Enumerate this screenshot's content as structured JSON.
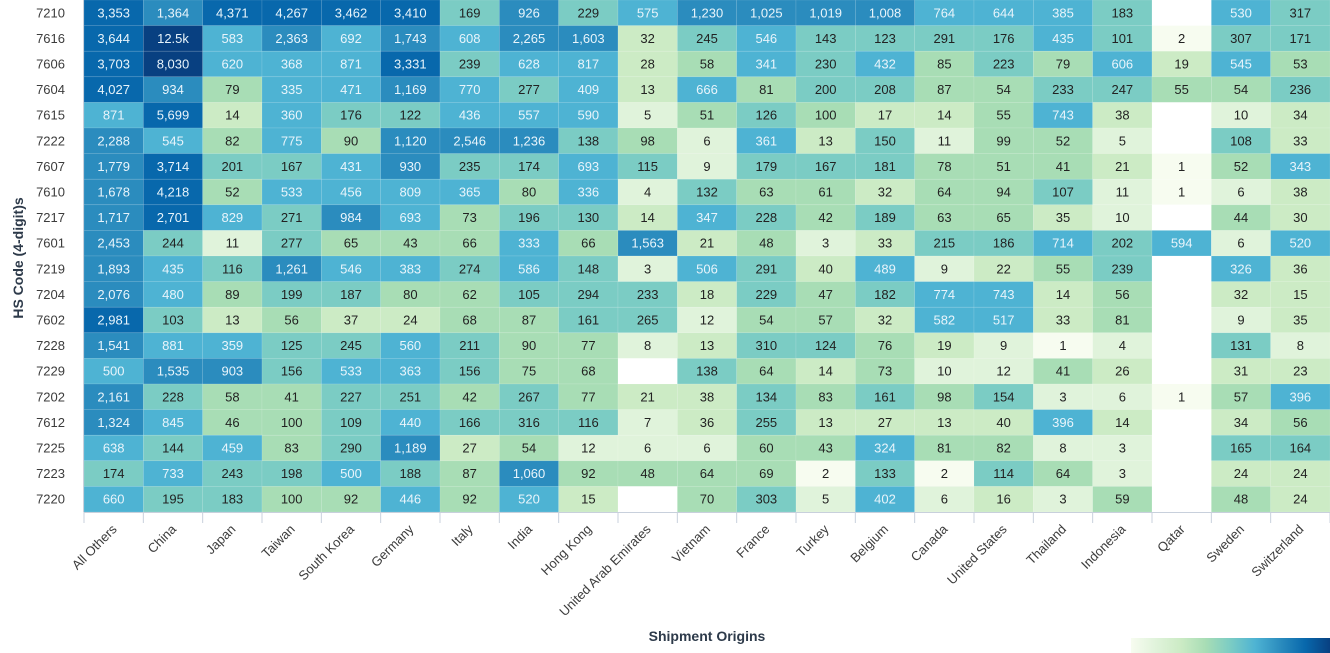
{
  "chart_data": {
    "type": "heatmap",
    "title": "",
    "xlabel": "Shipment Origins",
    "ylabel": "HS Code (4-digit)s",
    "color_scale": "log",
    "colormap": [
      "#f7fcf0",
      "#e0f3db",
      "#ccebc5",
      "#a8ddb5",
      "#7bccc4",
      "#4eb3d3",
      "#2b8cbe",
      "#0868ac",
      "#084081"
    ],
    "categories_x": [
      "All Others",
      "China",
      "Japan",
      "Taiwan",
      "South Korea",
      "Germany",
      "Italy",
      "India",
      "Hong Kong",
      "United Arab Emirates",
      "Vietnam",
      "France",
      "Turkey",
      "Belgium",
      "Canada",
      "United States",
      "Thailand",
      "Indonesia",
      "Qatar",
      "Sweden",
      "Switzerland"
    ],
    "categories_y": [
      "7210",
      "7616",
      "7606",
      "7604",
      "7615",
      "7222",
      "7607",
      "7610",
      "7217",
      "7601",
      "7219",
      "7204",
      "7602",
      "7228",
      "7229",
      "7202",
      "7612",
      "7225",
      "7223",
      "7220"
    ],
    "values": [
      [
        3353,
        1364,
        4371,
        4267,
        3462,
        3410,
        169,
        926,
        229,
        575,
        1230,
        1025,
        1019,
        1008,
        764,
        644,
        385,
        183,
        null,
        530,
        317
      ],
      [
        3644,
        12500,
        583,
        2363,
        692,
        1743,
        608,
        2265,
        1603,
        32,
        245,
        546,
        143,
        123,
        291,
        176,
        435,
        101,
        2,
        307,
        171
      ],
      [
        3703,
        8030,
        620,
        368,
        871,
        3331,
        239,
        628,
        817,
        28,
        58,
        341,
        230,
        432,
        85,
        223,
        79,
        606,
        19,
        545,
        53
      ],
      [
        4027,
        934,
        79,
        335,
        471,
        1169,
        770,
        277,
        409,
        13,
        666,
        81,
        200,
        208,
        87,
        54,
        233,
        247,
        55,
        54,
        236
      ],
      [
        871,
        5699,
        14,
        360,
        176,
        122,
        436,
        557,
        590,
        5,
        51,
        126,
        100,
        17,
        14,
        55,
        743,
        38,
        null,
        10,
        34
      ],
      [
        2288,
        545,
        82,
        775,
        90,
        1120,
        2546,
        1236,
        138,
        98,
        6,
        361,
        13,
        150,
        11,
        99,
        52,
        5,
        null,
        108,
        33
      ],
      [
        1779,
        3714,
        201,
        167,
        431,
        930,
        235,
        174,
        693,
        115,
        9,
        179,
        167,
        181,
        78,
        51,
        41,
        21,
        1,
        52,
        343
      ],
      [
        1678,
        4218,
        52,
        533,
        456,
        809,
        365,
        80,
        336,
        4,
        132,
        63,
        61,
        32,
        64,
        94,
        107,
        11,
        1,
        6,
        38
      ],
      [
        1717,
        2701,
        829,
        271,
        984,
        693,
        73,
        196,
        130,
        14,
        347,
        228,
        42,
        189,
        63,
        65,
        35,
        10,
        null,
        44,
        30
      ],
      [
        2453,
        244,
        11,
        277,
        65,
        43,
        66,
        333,
        66,
        1563,
        21,
        48,
        3,
        33,
        215,
        186,
        714,
        202,
        594,
        6,
        520
      ],
      [
        1893,
        435,
        116,
        1261,
        546,
        383,
        274,
        586,
        148,
        3,
        506,
        291,
        40,
        489,
        9,
        22,
        55,
        239,
        null,
        326,
        36
      ],
      [
        2076,
        480,
        89,
        199,
        187,
        80,
        62,
        105,
        294,
        233,
        18,
        229,
        47,
        182,
        774,
        743,
        14,
        56,
        null,
        32,
        15
      ],
      [
        2981,
        103,
        13,
        56,
        37,
        24,
        68,
        87,
        161,
        265,
        12,
        54,
        57,
        32,
        582,
        517,
        33,
        81,
        null,
        9,
        35
      ],
      [
        1541,
        881,
        359,
        125,
        245,
        560,
        211,
        90,
        77,
        8,
        13,
        310,
        124,
        76,
        19,
        9,
        1,
        4,
        null,
        131,
        8
      ],
      [
        500,
        1535,
        903,
        156,
        533,
        363,
        156,
        75,
        68,
        null,
        138,
        64,
        14,
        73,
        10,
        12,
        41,
        26,
        null,
        31,
        23
      ],
      [
        2161,
        228,
        58,
        41,
        227,
        251,
        42,
        267,
        77,
        21,
        38,
        134,
        83,
        161,
        98,
        154,
        3,
        6,
        1,
        57,
        396
      ],
      [
        1324,
        845,
        46,
        100,
        109,
        440,
        166,
        316,
        116,
        7,
        36,
        255,
        13,
        27,
        13,
        40,
        396,
        14,
        null,
        34,
        56
      ],
      [
        638,
        144,
        459,
        83,
        290,
        1189,
        27,
        54,
        12,
        6,
        6,
        60,
        43,
        324,
        81,
        82,
        8,
        3,
        null,
        165,
        164
      ],
      [
        174,
        733,
        243,
        198,
        500,
        188,
        87,
        1060,
        92,
        48,
        64,
        69,
        2,
        133,
        2,
        114,
        64,
        3,
        null,
        24,
        24
      ],
      [
        660,
        195,
        183,
        100,
        92,
        446,
        92,
        520,
        15,
        null,
        70,
        303,
        5,
        402,
        6,
        16,
        3,
        59,
        null,
        48,
        24
      ]
    ],
    "value_labels_note": "12500 displayed as 12.5k",
    "legend": {
      "type": "colorbar",
      "placement": "bottom-right"
    },
    "grid": false
  }
}
